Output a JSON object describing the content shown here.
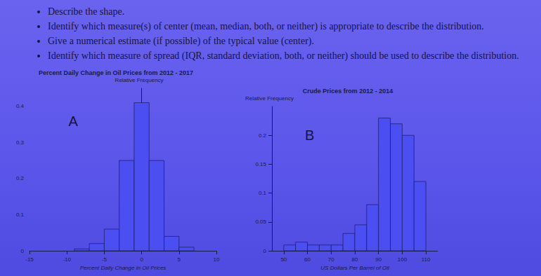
{
  "instructions": [
    "Describe the shape.",
    "Identify which measure(s) of center (mean, median, both, or neither) is appropriate to describe the distribution.",
    "Give a numerical estimate (if possible) of the typical value (center).",
    "Identify which measure of spread (IQR, standard deviation, both, or neither) should be used to describe the distribution."
  ],
  "chart_data": [
    {
      "type": "histogram",
      "title": "Percent Daily Change in Oil Prices from 2012 - 2017",
      "label": "A",
      "ylabel": "Relative Frequency",
      "xlabel": "Percent Daily Change in Oil Prices",
      "bins": [
        -9,
        -7,
        -5,
        -3,
        -1,
        1,
        3,
        5,
        7
      ],
      "values": [
        0.005,
        0.02,
        0.06,
        0.25,
        0.41,
        0.25,
        0.04,
        0.01
      ],
      "color": "#4b4ff2",
      "xlim": [
        -15,
        10
      ],
      "xticks": [
        -15,
        -10,
        -5,
        0,
        5,
        10
      ],
      "ylim": [
        0,
        0.45
      ],
      "yticks": [
        0,
        0.1,
        0.2,
        0.3,
        0.4
      ],
      "grid": false
    },
    {
      "type": "histogram",
      "title": "Crude Prices from 2012 - 2014",
      "label": "B",
      "ylabel": "Relative Frequency",
      "xlabel": "US Dollars Per Barrel of Oil",
      "bins": [
        50,
        55,
        60,
        65,
        70,
        75,
        80,
        85,
        90,
        95,
        100,
        105,
        110
      ],
      "values": [
        0.01,
        0.015,
        0.01,
        0.01,
        0.01,
        0.03,
        0.045,
        0.08,
        0.23,
        0.22,
        0.2,
        0.12
      ],
      "color": "#4b4ff2",
      "xlim": [
        45,
        115
      ],
      "xticks": [
        50,
        60,
        70,
        80,
        90,
        100,
        110
      ],
      "ylim": [
        0,
        0.25
      ],
      "yticks": [
        0,
        0.05,
        0.1,
        0.15,
        0.2
      ],
      "grid": false
    }
  ]
}
